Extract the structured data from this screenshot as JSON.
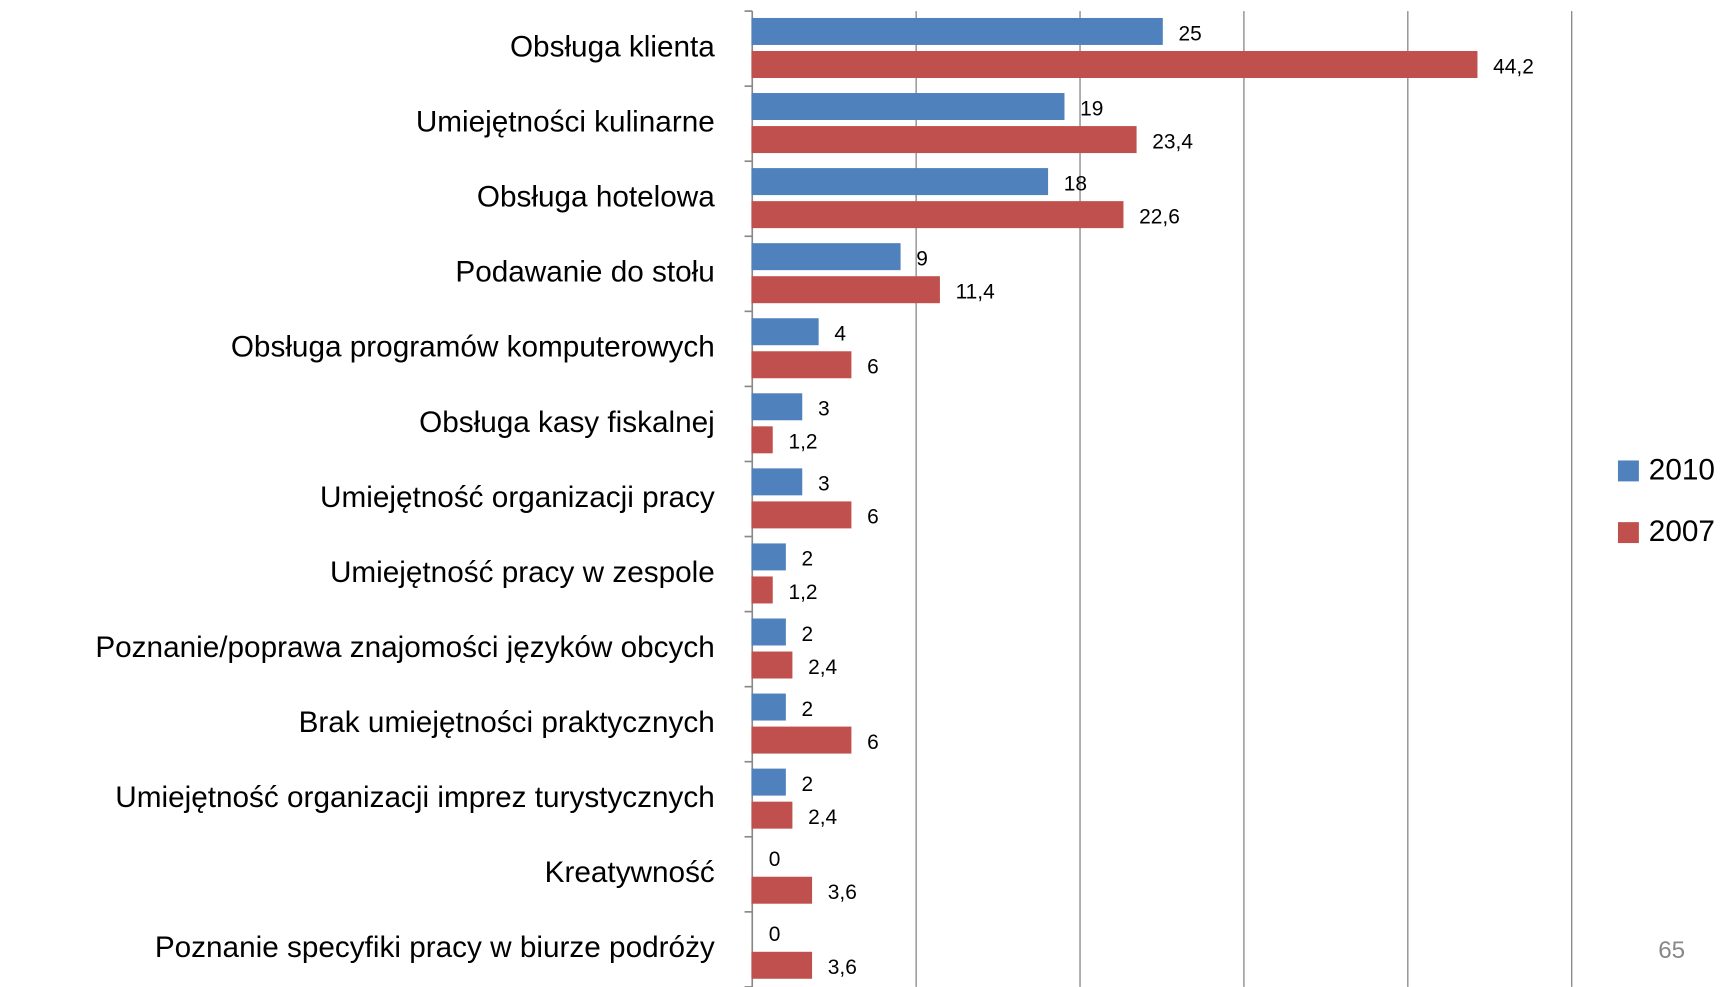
{
  "chart_data": {
    "type": "bar",
    "orientation": "horizontal",
    "categories": [
      "Obsługa klienta",
      "Umiejętności kulinarne",
      "Obsługa hotelowa",
      "Podawanie do stołu",
      "Obsługa programów komputerowych",
      "Obsługa kasy fiskalnej",
      "Umiejętność organizacji pracy",
      "Umiejętność pracy w zespole",
      "Poznanie/poprawa znajomości języków obcych",
      "Brak umiejętności praktycznych",
      "Umiejętność organizacji imprez turystycznych",
      "Kreatywność",
      "Poznanie specyfiki pracy w biurze podróży"
    ],
    "series": [
      {
        "name": "2010",
        "color": "#4f81bd",
        "values": [
          25,
          19,
          18,
          9,
          4,
          3,
          3,
          2,
          2,
          2,
          2,
          0,
          0
        ]
      },
      {
        "name": "2007",
        "color": "#c0504d",
        "values": [
          44.2,
          23.4,
          22.6,
          11.4,
          6,
          1.2,
          6,
          1.2,
          2.4,
          6,
          2.4,
          3.6,
          3.6
        ],
        "value_labels": [
          "44,2",
          "23,4",
          "22,6",
          "11,4",
          "6",
          "1,2",
          "6",
          "1,2",
          "2,4",
          "6",
          "2,4",
          "3,6",
          "3,6"
        ]
      }
    ],
    "xlim": [
      0,
      50
    ],
    "xticks": [
      0,
      10,
      20,
      30,
      40,
      50
    ],
    "grid": true,
    "legend": "right"
  },
  "page_number": "65"
}
